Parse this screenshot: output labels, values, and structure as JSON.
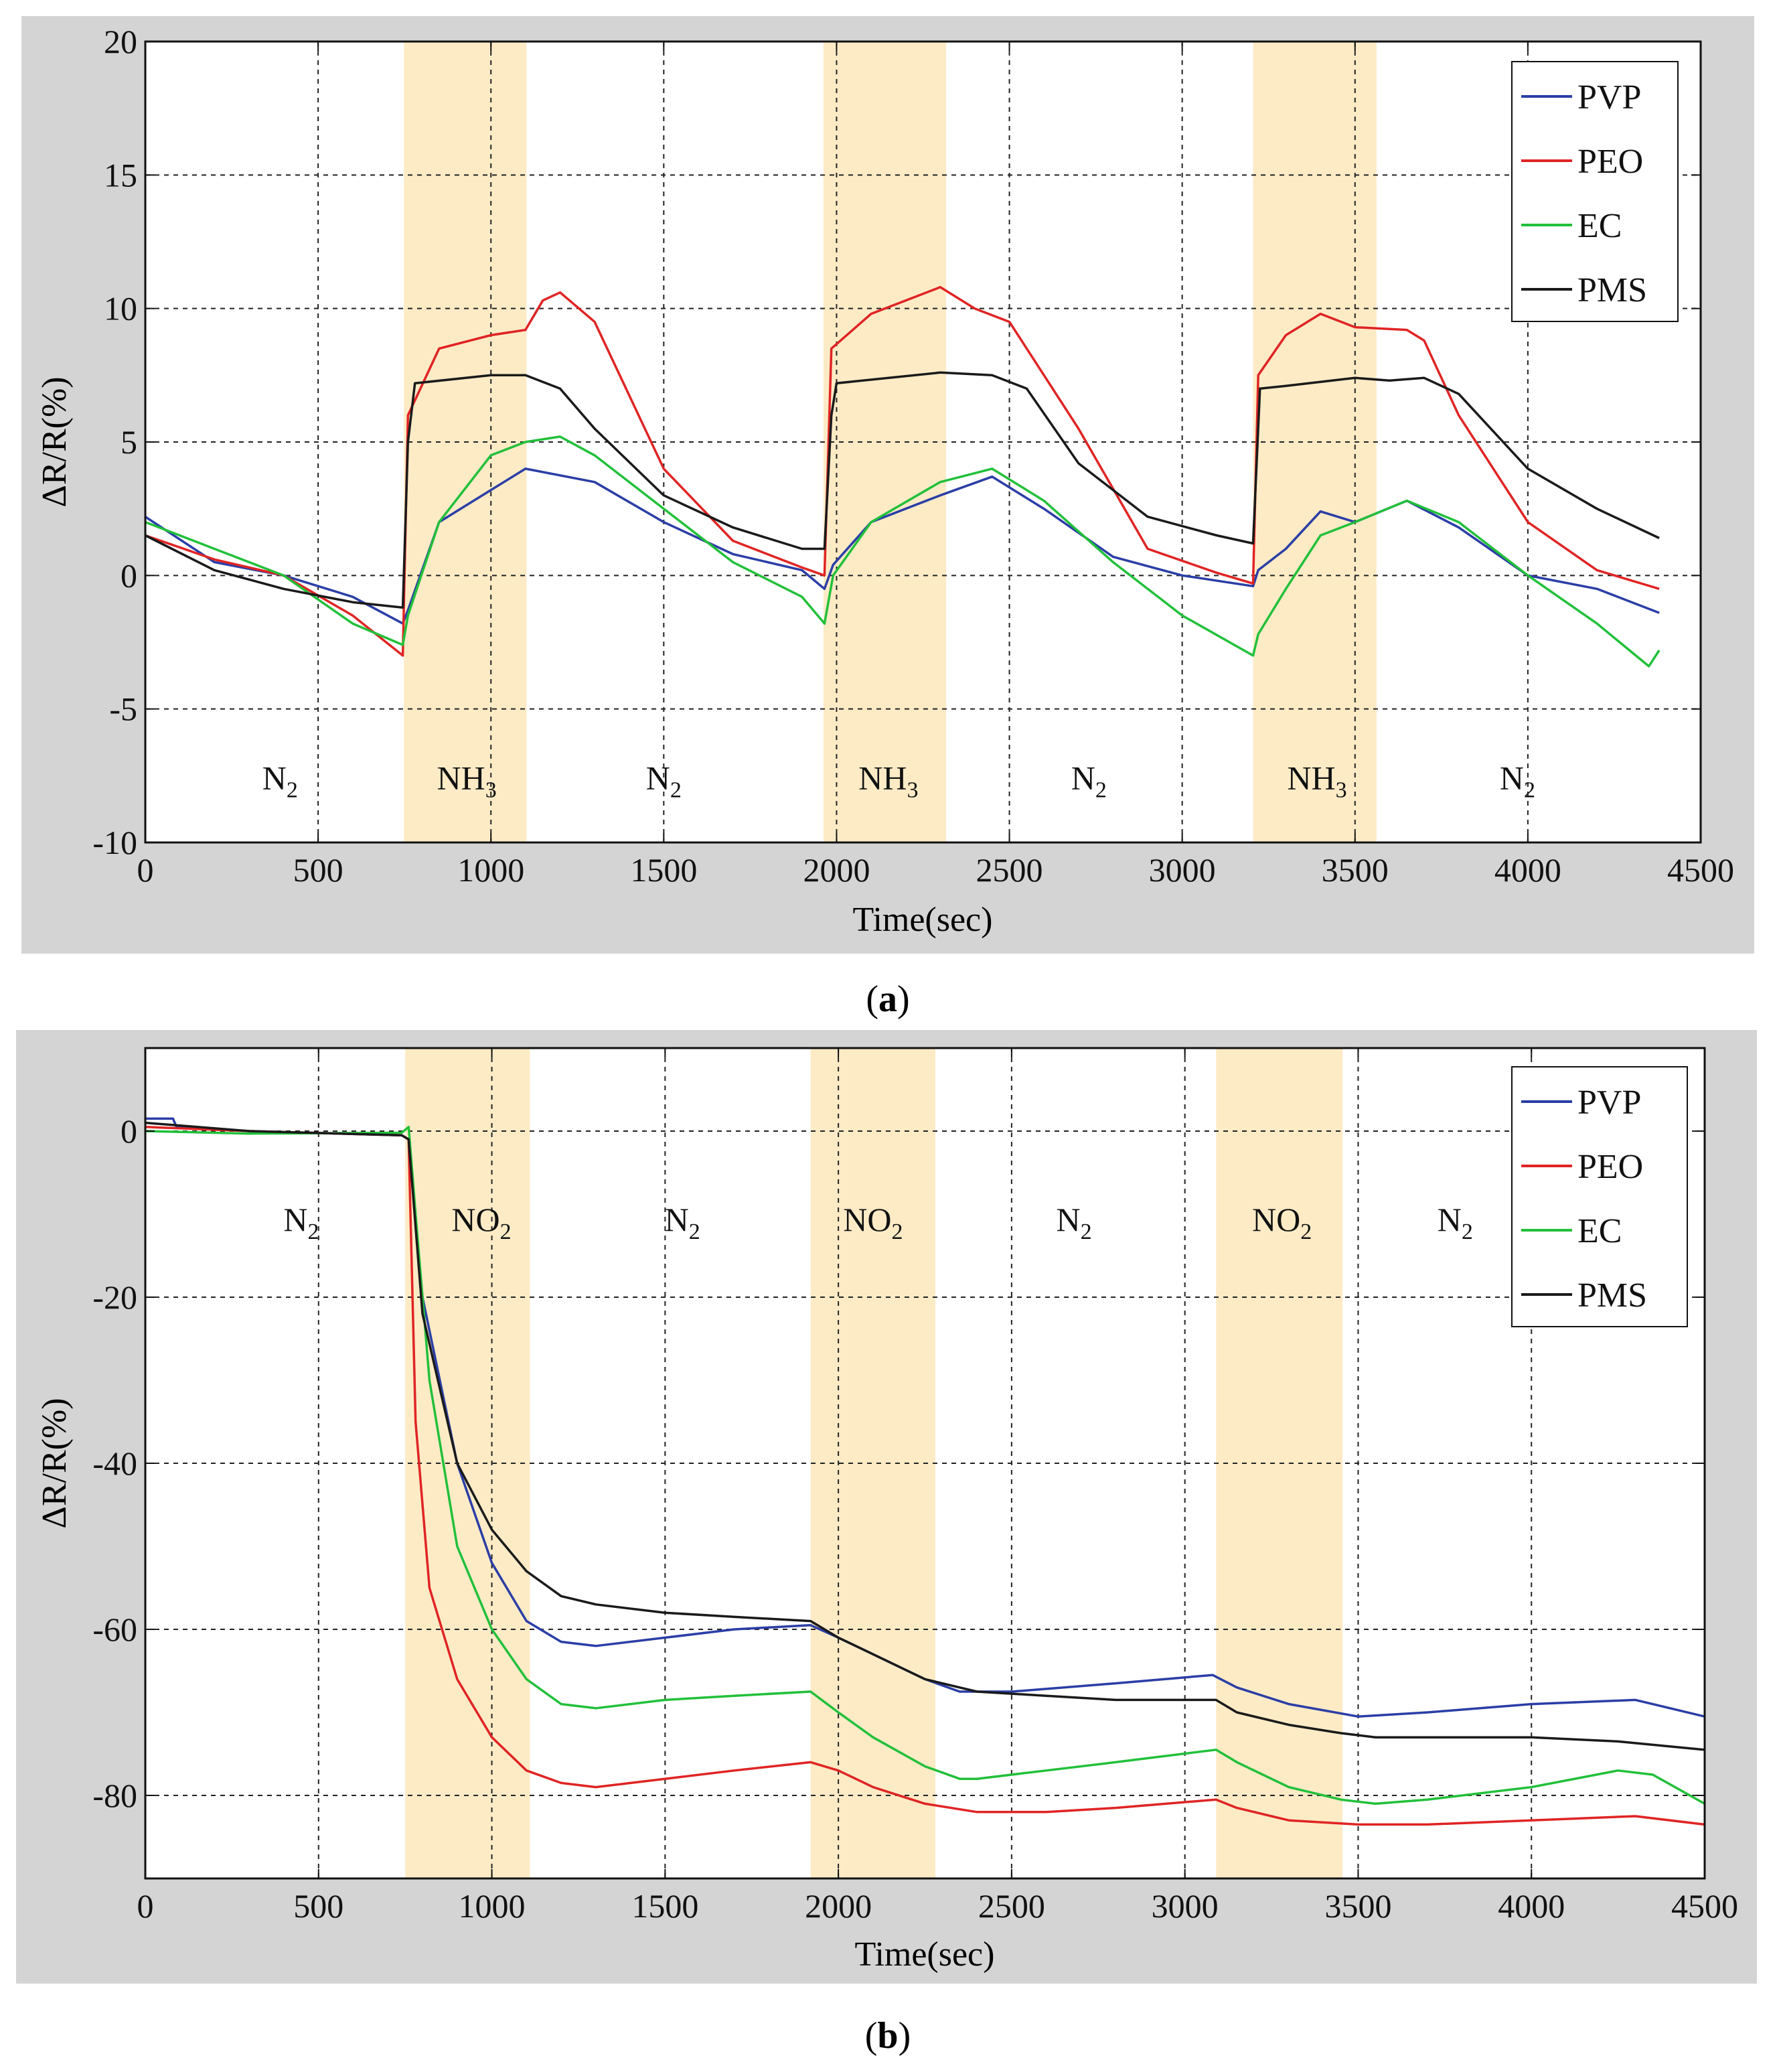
{
  "colors": {
    "frame": "#d4d4d4",
    "plot_bg": "#ffffff",
    "band": "#fdebc6",
    "grid": "#222222",
    "PVP": "#2b3ea6",
    "PEO": "#e02424",
    "EC": "#22c03a",
    "PMS": "#1a1a1a"
  },
  "chart_data": [
    {
      "type": "line",
      "panel_label": "a",
      "xlabel": "Time(sec)",
      "ylabel": "ΔR/R(%)",
      "xlim": [
        0,
        4500
      ],
      "ylim": [
        -10,
        20
      ],
      "xticks": [
        0,
        500,
        1000,
        1500,
        2000,
        2500,
        3000,
        3500,
        4000,
        4500
      ],
      "yticks": [
        20,
        15,
        10,
        5,
        0,
        -5,
        -10
      ],
      "grid": true,
      "legend": {
        "position": "top-right",
        "entries": [
          "PVP",
          "PEO",
          "EC",
          "PMS"
        ]
      },
      "gas_bands": [
        [
          748,
          1103
        ],
        [
          1962,
          2317
        ],
        [
          3205,
          3562
        ]
      ],
      "region_labels": [
        {
          "x": 390,
          "main": "N",
          "sub": "2"
        },
        {
          "x": 930,
          "main": "NH",
          "sub": "3"
        },
        {
          "x": 1500,
          "main": "N",
          "sub": "2"
        },
        {
          "x": 2150,
          "main": "NH",
          "sub": "3"
        },
        {
          "x": 2730,
          "main": "N",
          "sub": "2"
        },
        {
          "x": 3390,
          "main": "NH",
          "sub": "3"
        },
        {
          "x": 3970,
          "main": "N",
          "sub": "2"
        }
      ],
      "region_label_y": -8,
      "series": [
        {
          "name": "PVP",
          "x": [
            0,
            200,
            400,
            600,
            745,
            760,
            850,
            1000,
            1100,
            1300,
            1500,
            1700,
            1900,
            1965,
            1990,
            2100,
            2300,
            2450,
            2600,
            2800,
            3000,
            3205,
            3220,
            3300,
            3400,
            3500,
            3650,
            3800,
            4000,
            4200,
            4380
          ],
          "y": [
            2.2,
            0.5,
            0.0,
            -0.8,
            -1.8,
            -1.3,
            2.0,
            3.2,
            4.0,
            3.5,
            2.0,
            0.8,
            0.2,
            -0.5,
            0.4,
            2.0,
            3.0,
            3.7,
            2.5,
            0.7,
            0.0,
            -0.4,
            0.2,
            1.0,
            2.4,
            2.0,
            2.8,
            1.8,
            0.0,
            -0.5,
            -1.4
          ]
        },
        {
          "name": "PEO",
          "x": [
            0,
            200,
            400,
            600,
            745,
            760,
            850,
            1000,
            1100,
            1150,
            1200,
            1300,
            1500,
            1700,
            1900,
            1965,
            1985,
            2100,
            2300,
            2400,
            2500,
            2700,
            2900,
            3100,
            3205,
            3220,
            3300,
            3400,
            3500,
            3650,
            3700,
            3800,
            4000,
            4200,
            4380
          ],
          "y": [
            1.5,
            0.6,
            0.0,
            -1.5,
            -3.0,
            6.0,
            8.5,
            9.0,
            9.2,
            10.3,
            10.6,
            9.5,
            4.0,
            1.3,
            0.3,
            0.0,
            8.5,
            9.8,
            10.8,
            10.0,
            9.5,
            5.5,
            1.0,
            0.1,
            -0.3,
            7.5,
            9.0,
            9.8,
            9.3,
            9.2,
            8.8,
            6.0,
            2.0,
            0.2,
            -0.5
          ]
        },
        {
          "name": "EC",
          "x": [
            0,
            200,
            400,
            600,
            745,
            760,
            850,
            1000,
            1100,
            1200,
            1300,
            1500,
            1700,
            1900,
            1965,
            1990,
            2100,
            2300,
            2450,
            2600,
            2800,
            3000,
            3205,
            3220,
            3300,
            3400,
            3500,
            3650,
            3800,
            4000,
            4200,
            4350,
            4380
          ],
          "y": [
            2.0,
            1.0,
            0.0,
            -1.8,
            -2.6,
            -1.5,
            2.0,
            4.5,
            5.0,
            5.2,
            4.5,
            2.5,
            0.5,
            -0.8,
            -1.8,
            0.0,
            2.0,
            3.5,
            4.0,
            2.8,
            0.5,
            -1.5,
            -3.0,
            -2.2,
            -0.5,
            1.5,
            2.0,
            2.8,
            2.0,
            0.0,
            -1.8,
            -3.4,
            -2.8
          ]
        },
        {
          "name": "PMS",
          "x": [
            0,
            200,
            400,
            600,
            745,
            760,
            780,
            1000,
            1100,
            1200,
            1300,
            1500,
            1700,
            1900,
            1965,
            1985,
            2000,
            2300,
            2450,
            2550,
            2700,
            2900,
            3100,
            3205,
            3225,
            3300,
            3500,
            3600,
            3700,
            3800,
            4000,
            4200,
            4380
          ],
          "y": [
            1.5,
            0.2,
            -0.5,
            -1.0,
            -1.2,
            5.0,
            7.2,
            7.5,
            7.5,
            7.0,
            5.5,
            3.0,
            1.8,
            1.0,
            1.0,
            6.0,
            7.2,
            7.6,
            7.5,
            7.0,
            4.2,
            2.2,
            1.5,
            1.2,
            7.0,
            7.1,
            7.4,
            7.3,
            7.4,
            6.8,
            4.0,
            2.5,
            1.4
          ]
        }
      ]
    },
    {
      "type": "line",
      "panel_label": "b",
      "xlabel": "Time(sec)",
      "ylabel": "ΔR/R(%)",
      "xlim": [
        0,
        4500
      ],
      "ylim": [
        -90,
        10
      ],
      "xticks": [
        0,
        500,
        1000,
        1500,
        2000,
        2500,
        3000,
        3500,
        4000,
        4500
      ],
      "yticks": [
        0,
        -20,
        -40,
        -60,
        -80
      ],
      "grid": true,
      "legend": {
        "position": "top-right",
        "entries": [
          "PVP",
          "PEO",
          "EC",
          "PMS"
        ]
      },
      "gas_bands": [
        [
          750,
          1110
        ],
        [
          1920,
          2280
        ],
        [
          3090,
          3455
        ]
      ],
      "region_labels": [
        {
          "x": 450,
          "main": "N",
          "sub": "2"
        },
        {
          "x": 970,
          "main": "NO",
          "sub": "2"
        },
        {
          "x": 1550,
          "main": "N",
          "sub": "2"
        },
        {
          "x": 2100,
          "main": "NO",
          "sub": "2"
        },
        {
          "x": 2680,
          "main": "N",
          "sub": "2"
        },
        {
          "x": 3280,
          "main": "NO",
          "sub": "2"
        },
        {
          "x": 3780,
          "main": "N",
          "sub": "2"
        }
      ],
      "region_label_y": -12,
      "series": [
        {
          "name": "PVP",
          "x": [
            0,
            80,
            90,
            300,
            740,
            760,
            800,
            900,
            1000,
            1100,
            1200,
            1300,
            1500,
            1700,
            1920,
            2000,
            2100,
            2250,
            2350,
            2500,
            2800,
            3080,
            3150,
            3300,
            3500,
            3700,
            4000,
            4300,
            4500
          ],
          "y": [
            1.5,
            1.5,
            0.5,
            0.0,
            -0.5,
            -1.0,
            -20,
            -40,
            -52,
            -59,
            -61.5,
            -62,
            -61,
            -60,
            -59.5,
            -61,
            -63,
            -66,
            -67.5,
            -67.5,
            -66.5,
            -65.5,
            -67,
            -69,
            -70.5,
            -70,
            -69,
            -68.5,
            -70.5
          ]
        },
        {
          "name": "PEO",
          "x": [
            0,
            300,
            740,
            760,
            780,
            820,
            900,
            1000,
            1100,
            1200,
            1300,
            1500,
            1700,
            1920,
            2000,
            2100,
            2250,
            2400,
            2600,
            2800,
            3090,
            3150,
            3300,
            3500,
            3700,
            4000,
            4300,
            4500
          ],
          "y": [
            0.5,
            0.0,
            -0.5,
            -1.0,
            -35,
            -55,
            -66,
            -73,
            -77,
            -78.5,
            -79,
            -78,
            -77,
            -76,
            -77,
            -79,
            -81,
            -82,
            -82,
            -81.5,
            -80.5,
            -81.5,
            -83,
            -83.5,
            -83.5,
            -83,
            -82.5,
            -83.5
          ]
        },
        {
          "name": "EC",
          "x": [
            0,
            300,
            740,
            760,
            780,
            820,
            900,
            1000,
            1100,
            1200,
            1300,
            1500,
            1700,
            1920,
            2000,
            2100,
            2250,
            2350,
            2400,
            2600,
            2800,
            3090,
            3150,
            3300,
            3450,
            3550,
            3700,
            4000,
            4250,
            4350,
            4500
          ],
          "y": [
            0.0,
            -0.3,
            -0.2,
            0.5,
            -10,
            -30,
            -50,
            -60,
            -66,
            -69,
            -69.5,
            -68.5,
            -68,
            -67.5,
            -70,
            -73,
            -76.5,
            -78,
            -78,
            -77,
            -76,
            -74.5,
            -76,
            -79,
            -80.5,
            -81,
            -80.5,
            -79,
            -77,
            -77.5,
            -81
          ]
        },
        {
          "name": "PMS",
          "x": [
            0,
            300,
            740,
            760,
            800,
            900,
            1000,
            1100,
            1200,
            1300,
            1500,
            1700,
            1920,
            2000,
            2100,
            2250,
            2400,
            2600,
            2800,
            3090,
            3150,
            3300,
            3450,
            3550,
            3700,
            4000,
            4250,
            4500
          ],
          "y": [
            1.0,
            0.0,
            -0.5,
            -1.0,
            -22,
            -40,
            -48,
            -53,
            -56,
            -57,
            -58,
            -58.5,
            -59,
            -61,
            -63,
            -66,
            -67.5,
            -68,
            -68.5,
            -68.5,
            -70,
            -71.5,
            -72.5,
            -73,
            -73,
            -73,
            -73.5,
            -74.5
          ]
        }
      ]
    }
  ],
  "panel_captions": [
    "(a)",
    "(b)"
  ]
}
